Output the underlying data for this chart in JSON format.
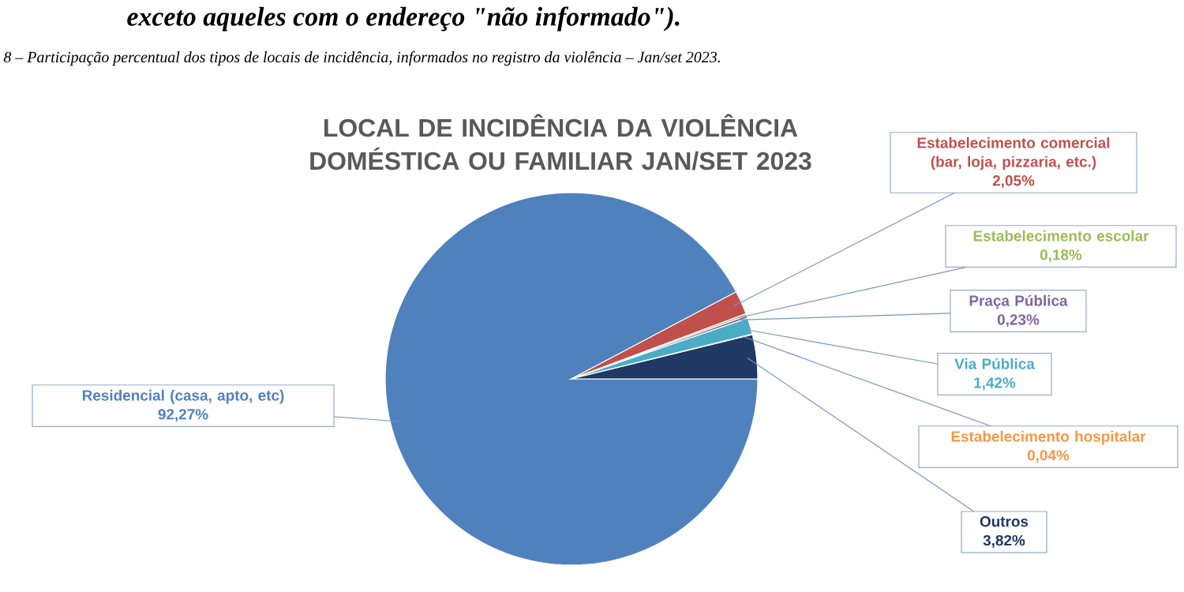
{
  "chart_data": {
    "type": "pie",
    "title": "LOCAL DE INCIDÊNCIA DA VIOLÊNCIA DOMÉSTICA OU FAMILIAR JAN/SET 2023",
    "categories": [
      "Residencial (casa, apto, etc)",
      "Estabelecimento comercial (bar, loja, pizzaria, etc.)",
      "Estabelecimento escolar",
      "Praça Pública",
      "Via Pública",
      "Estabelecimento hospitalar",
      "Outros"
    ],
    "values": [
      92.27,
      2.05,
      0.18,
      0.23,
      1.42,
      0.04,
      3.82
    ],
    "value_labels": [
      "92,27%",
      "2,05%",
      "0,18%",
      "0,23%",
      "1,42%",
      "0,04%",
      "3,82%"
    ],
    "colors": [
      "#4f81bd",
      "#c0504d",
      "#9bbb59",
      "#8064a2",
      "#4bacc6",
      "#f79646",
      "#1f3864"
    ],
    "annotations": [
      "exceto aqueles com o endereço \"não informado\").",
      "8 – Participação percentual dos tipos de locais de incidência, informados no registro da violência – Jan/set 2023."
    ]
  }
}
